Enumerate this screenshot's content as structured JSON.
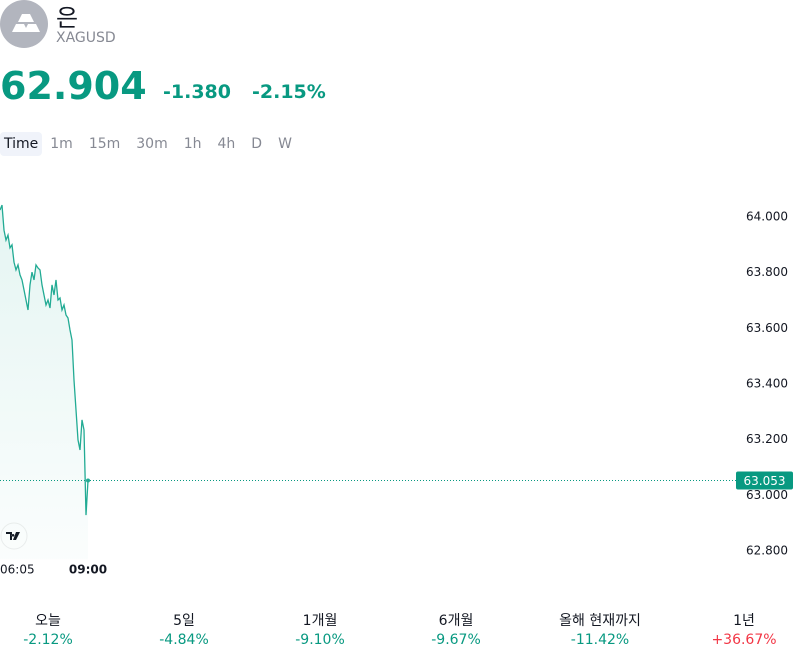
{
  "header": {
    "name": "은",
    "symbol": "XAGUSD",
    "price": "62.904",
    "change": "-1.380",
    "change_percent": "-2.15%"
  },
  "intervals": [
    "Time",
    "1m",
    "15m",
    "30m",
    "1h",
    "4h",
    "D",
    "W"
  ],
  "active_interval": 0,
  "chart_data": {
    "type": "line",
    "color": "#22ab94",
    "values": [
      64.025,
      64.043,
      63.953,
      63.917,
      63.935,
      63.889,
      63.9,
      63.838,
      63.81,
      63.828,
      63.792,
      63.774,
      63.738,
      63.702,
      63.666,
      63.756,
      63.802,
      63.774,
      63.828,
      63.817,
      63.81,
      63.756,
      63.72,
      63.684,
      63.702,
      63.673,
      63.756,
      63.72,
      63.774,
      63.702,
      63.709,
      63.666,
      63.684,
      63.648,
      63.637,
      63.594,
      63.558,
      63.414,
      63.307,
      63.199,
      63.163,
      63.271,
      63.235,
      62.929,
      63.053
    ],
    "xlim": [
      0,
      365
    ],
    "xticks": [
      {
        "value": 8.5,
        "label": "06:05"
      },
      {
        "value": 44,
        "label": "09:00"
      }
    ],
    "ylim": [
      62.77,
      64.1
    ],
    "yticks": [
      {
        "value": 62.8,
        "label": "62.800"
      },
      {
        "value": 63,
        "label": "63.000"
      },
      {
        "value": 63.2,
        "label": "63.200"
      },
      {
        "value": 63.4,
        "label": "63.400"
      },
      {
        "value": 63.6,
        "label": "63.600"
      },
      {
        "value": 63.8,
        "label": "63.800"
      },
      {
        "value": 64,
        "label": "64.000"
      }
    ],
    "last_value": 63.053,
    "last_value_color": "#089981"
  },
  "performance": [
    {
      "period": "오늘",
      "change": "-2.12%",
      "color": "#089981"
    },
    {
      "period": "5일",
      "change": "-4.84%",
      "color": "#089981"
    },
    {
      "period": "1개월",
      "change": "-9.10%",
      "color": "#089981"
    },
    {
      "period": "6개월",
      "change": "-9.67%",
      "color": "#089981"
    },
    {
      "period": "올해 현재까지",
      "change": "-11.42%",
      "color": "#089981"
    },
    {
      "period": "1년",
      "change": "+36.67%",
      "color": "#f23645"
    }
  ]
}
